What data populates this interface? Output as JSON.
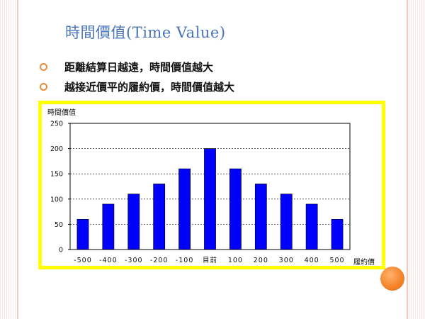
{
  "slide": {
    "title": "時間價值(Time Value)",
    "bullets": [
      "距離結算日越遠，時間價值越大",
      "越接近價平的履約價，時間價值越大"
    ]
  },
  "colors": {
    "title": "#4a74b8",
    "bullet": "#e98d3c",
    "frame": "#ffff00",
    "bar": "#0000ff",
    "accent_circle": "#f5852d"
  },
  "chart_data": {
    "type": "bar",
    "ylabel": "時間價值",
    "xlabel": "履約價",
    "categories": [
      "-500",
      "-400",
      "-300",
      "-200",
      "-100",
      "目前",
      "100",
      "200",
      "300",
      "400",
      "500"
    ],
    "values": [
      60,
      90,
      110,
      130,
      160,
      200,
      160,
      130,
      110,
      90,
      60
    ],
    "ylim": [
      0,
      250
    ],
    "yticks": [
      0,
      50,
      100,
      150,
      200,
      250
    ],
    "grid": "horizontal-dashed",
    "legend": "none"
  }
}
